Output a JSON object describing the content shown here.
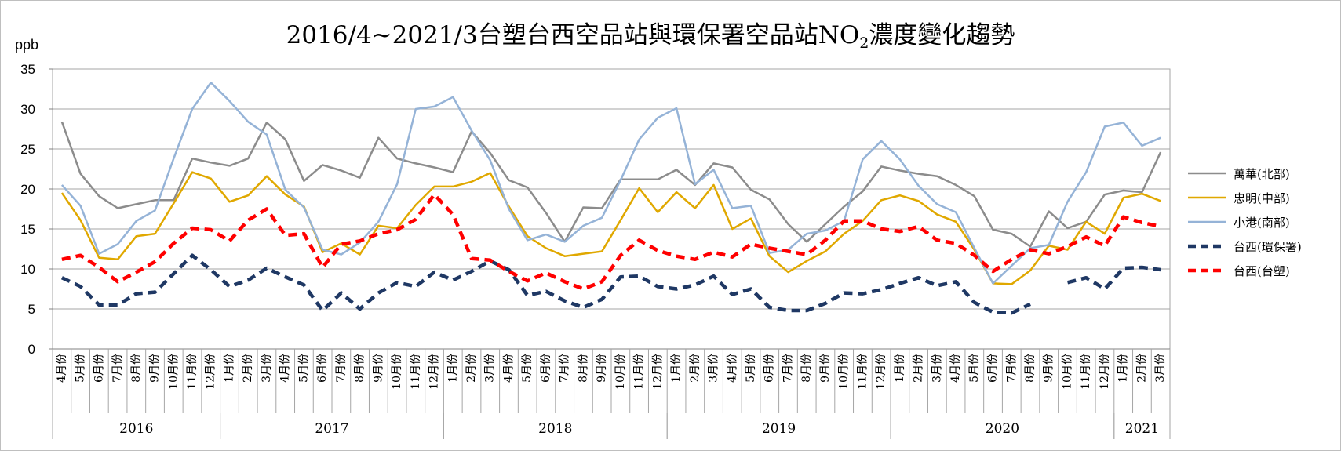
{
  "chart_data": {
    "type": "line",
    "title_pre": "2016/4~2021/3台塑台西空品站與環保署空品站NO",
    "title_sub": "2",
    "title_post": "濃度變化趨勢",
    "ylabel": "ppb",
    "ylim": [
      0,
      35
    ],
    "yticks": [
      0,
      5,
      10,
      15,
      20,
      25,
      30,
      35
    ],
    "grid": true,
    "legend_position": "right",
    "categories": [
      "4月份",
      "5月份",
      "6月份",
      "7月份",
      "8月份",
      "9月份",
      "10月份",
      "11月份",
      "12月份",
      "1月份",
      "2月份",
      "3月份",
      "4月份",
      "5月份",
      "6月份",
      "7月份",
      "8月份",
      "9月份",
      "10月份",
      "11月份",
      "12月份",
      "1月份",
      "2月份",
      "3月份",
      "4月份",
      "5月份",
      "6月份",
      "7月份",
      "8月份",
      "9月份",
      "10月份",
      "11月份",
      "12月份",
      "1月份",
      "2月份",
      "3月份",
      "4月份",
      "5月份",
      "6月份",
      "7月份",
      "8月份",
      "9月份",
      "10月份",
      "11月份",
      "12月份",
      "1月份",
      "2月份",
      "3月份",
      "4月份",
      "5月份",
      "6月份",
      "7月份",
      "8月份",
      "9月份",
      "10月份",
      "11月份",
      "12月份",
      "1月份",
      "2月份",
      "3月份"
    ],
    "years": [
      {
        "label": "2016",
        "start": 0,
        "count": 9
      },
      {
        "label": "2017",
        "start": 9,
        "count": 12
      },
      {
        "label": "2018",
        "start": 21,
        "count": 12
      },
      {
        "label": "2019",
        "start": 33,
        "count": 12
      },
      {
        "label": "2020",
        "start": 45,
        "count": 12
      },
      {
        "label": "2021",
        "start": 57,
        "count": 3
      }
    ],
    "series": [
      {
        "name": "萬華(北部)",
        "color": "#8c8c8c",
        "dashed": false,
        "values": [
          28.4,
          21.9,
          19.1,
          17.6,
          18.1,
          18.6,
          18.6,
          23.8,
          23.3,
          22.9,
          23.8,
          28.3,
          26.2,
          21.0,
          23.0,
          22.3,
          21.4,
          26.4,
          23.8,
          23.2,
          22.7,
          22.1,
          27.2,
          24.5,
          21.1,
          20.2,
          17.0,
          13.4,
          17.7,
          17.6,
          21.2,
          21.2,
          21.2,
          22.4,
          20.5,
          23.2,
          22.7,
          19.9,
          18.7,
          15.6,
          13.4,
          15.6,
          17.8,
          19.7,
          22.8,
          22.3,
          21.9,
          21.6,
          20.5,
          19.1,
          14.9,
          14.4,
          12.8,
          17.2,
          15.1,
          15.9,
          19.3,
          19.8,
          19.6,
          24.6
        ]
      },
      {
        "name": "忠明(中部)",
        "color": "#e0a800",
        "dashed": false,
        "values": [
          19.5,
          16.1,
          11.4,
          11.2,
          14.1,
          14.4,
          18.2,
          22.1,
          21.3,
          18.4,
          19.2,
          21.6,
          19.3,
          17.8,
          12.1,
          13.2,
          11.8,
          15.4,
          15.1,
          18.0,
          20.3,
          20.3,
          20.9,
          22.0,
          17.8,
          14.1,
          12.6,
          11.6,
          11.9,
          12.2,
          16.1,
          20.1,
          17.1,
          19.6,
          17.6,
          20.5,
          15.0,
          16.3,
          11.6,
          9.6,
          11.0,
          12.2,
          14.4,
          16.0,
          18.6,
          19.2,
          18.5,
          16.8,
          15.9,
          12.4,
          8.2,
          8.1,
          9.8,
          12.9,
          12.4,
          15.9,
          14.4,
          18.9,
          19.4,
          18.5
        ]
      },
      {
        "name": "小港(南部)",
        "color": "#95b3d7",
        "dashed": false,
        "values": [
          20.5,
          17.9,
          11.9,
          13.1,
          16.0,
          17.3,
          23.8,
          30.0,
          33.3,
          31.0,
          28.4,
          26.8,
          19.9,
          17.7,
          12.4,
          11.8,
          13.3,
          15.9,
          20.6,
          30.0,
          30.3,
          31.5,
          27.3,
          23.6,
          17.5,
          13.6,
          14.3,
          13.4,
          15.4,
          16.4,
          21.1,
          26.2,
          28.9,
          30.1,
          20.6,
          22.4,
          17.6,
          17.9,
          12.0,
          12.4,
          14.4,
          14.8,
          16.0,
          23.7,
          26.0,
          23.7,
          20.4,
          18.1,
          17.1,
          12.6,
          8.2,
          10.4,
          12.6,
          13.0,
          18.4,
          22.1,
          27.8,
          28.3,
          25.4,
          26.4
        ]
      },
      {
        "name": "台西(環保署)",
        "color": "#1f3864",
        "dashed": true,
        "values": [
          8.9,
          7.8,
          5.5,
          5.5,
          6.9,
          7.1,
          9.4,
          11.7,
          9.9,
          7.8,
          8.6,
          10.1,
          9.0,
          8.0,
          4.8,
          7.0,
          5.0,
          7.0,
          8.3,
          7.8,
          9.6,
          8.6,
          9.7,
          11.0,
          9.9,
          6.7,
          7.2,
          6.0,
          5.2,
          6.2,
          9.0,
          9.1,
          7.8,
          7.5,
          8.0,
          9.1,
          6.8,
          7.5,
          5.2,
          4.8,
          4.8,
          5.7,
          7.0,
          6.9,
          7.4,
          8.2,
          8.9,
          7.9,
          8.4,
          5.8,
          4.6,
          4.5,
          5.6,
          null,
          8.3,
          8.9,
          7.5,
          10.1,
          10.2,
          9.9
        ]
      },
      {
        "name": "台西(台塑)",
        "color": "#ff0000",
        "dashed": true,
        "values": [
          11.2,
          11.7,
          10.2,
          8.4,
          9.6,
          10.9,
          13.2,
          15.1,
          14.9,
          13.5,
          16.1,
          17.5,
          14.2,
          14.4,
          10.2,
          13.1,
          13.5,
          14.4,
          14.9,
          16.2,
          19.3,
          16.8,
          11.3,
          11.1,
          9.7,
          8.5,
          9.5,
          8.4,
          7.5,
          8.4,
          11.7,
          13.6,
          12.3,
          11.6,
          11.2,
          12.1,
          11.5,
          13.1,
          12.6,
          12.2,
          11.8,
          13.6,
          16.0,
          16.0,
          15.0,
          14.7,
          15.3,
          13.6,
          13.2,
          11.7,
          9.7,
          11.2,
          12.4,
          11.9,
          12.8,
          14.0,
          12.9,
          16.5,
          15.8,
          15.3
        ]
      }
    ]
  }
}
